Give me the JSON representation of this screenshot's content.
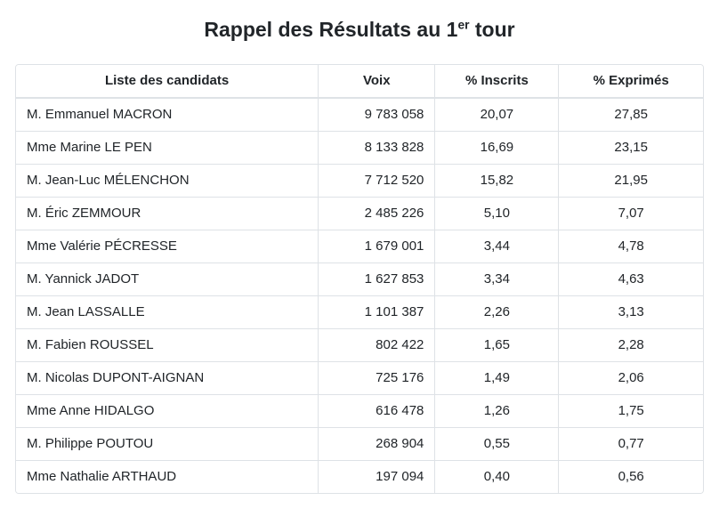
{
  "page": {
    "title_prefix": "Rappel des Résultats au 1",
    "title_sup": "er",
    "title_suffix": " tour"
  },
  "colors": {
    "text": "#212529",
    "border": "#dee2e6",
    "background": "#ffffff"
  },
  "table": {
    "columns": [
      "Liste des candidats",
      "Voix",
      "% Inscrits",
      "% Exprimés"
    ],
    "rows": [
      {
        "candidate": "M. Emmanuel MACRON",
        "voix": "9 783 058",
        "inscrits": "20,07",
        "exprimes": "27,85"
      },
      {
        "candidate": "Mme Marine LE PEN",
        "voix": "8 133 828",
        "inscrits": "16,69",
        "exprimes": "23,15"
      },
      {
        "candidate": "M. Jean-Luc MÉLENCHON",
        "voix": "7 712 520",
        "inscrits": "15,82",
        "exprimes": "21,95"
      },
      {
        "candidate": "M. Éric ZEMMOUR",
        "voix": "2 485 226",
        "inscrits": "5,10",
        "exprimes": "7,07"
      },
      {
        "candidate": "Mme Valérie PÉCRESSE",
        "voix": "1 679 001",
        "inscrits": "3,44",
        "exprimes": "4,78"
      },
      {
        "candidate": "M. Yannick JADOT",
        "voix": "1 627 853",
        "inscrits": "3,34",
        "exprimes": "4,63"
      },
      {
        "candidate": "M. Jean LASSALLE",
        "voix": "1 101 387",
        "inscrits": "2,26",
        "exprimes": "3,13"
      },
      {
        "candidate": "M. Fabien ROUSSEL",
        "voix": "802 422",
        "inscrits": "1,65",
        "exprimes": "2,28"
      },
      {
        "candidate": "M. Nicolas DUPONT-AIGNAN",
        "voix": "725 176",
        "inscrits": "1,49",
        "exprimes": "2,06"
      },
      {
        "candidate": "Mme Anne HIDALGO",
        "voix": "616 478",
        "inscrits": "1,26",
        "exprimes": "1,75"
      },
      {
        "candidate": "M. Philippe POUTOU",
        "voix": "268 904",
        "inscrits": "0,55",
        "exprimes": "0,77"
      },
      {
        "candidate": "Mme Nathalie ARTHAUD",
        "voix": "197 094",
        "inscrits": "0,40",
        "exprimes": "0,56"
      }
    ]
  }
}
